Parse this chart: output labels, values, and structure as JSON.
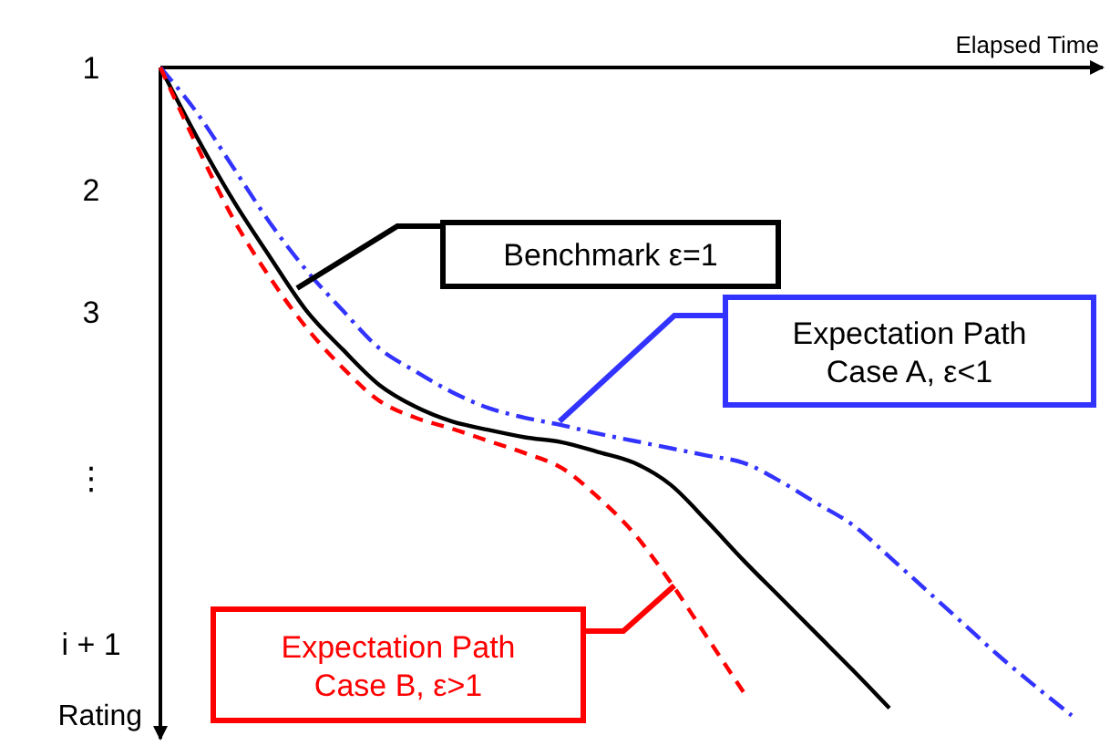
{
  "chart_data": {
    "type": "line",
    "xlabel": "Elapsed Time",
    "ylabel": "Rating",
    "categories": [
      null,
      null,
      null,
      null,
      null,
      null,
      null,
      null,
      null,
      null,
      null,
      null,
      null,
      null,
      null,
      null,
      null,
      null,
      null,
      null,
      null,
      null,
      null,
      null,
      null,
      null
    ],
    "ylim": [
      6.5,
      1
    ],
    "yticks": [
      1,
      2,
      3
    ],
    "annotations": [
      "⋮",
      "i + 1"
    ],
    "grid": false,
    "series": [
      {
        "name": "Benchmark  ε=1",
        "color": "#000000",
        "line_style": "solid",
        "values": [
          1.0,
          1.57,
          2.09,
          2.55,
          2.99,
          3.31,
          3.6,
          3.78,
          3.9,
          3.97,
          4.03,
          4.07,
          4.15,
          4.24,
          4.42,
          4.72,
          5.04,
          5.34,
          5.64,
          5.94,
          6.25,
          null,
          null,
          null,
          null,
          null
        ]
      },
      {
        "name": "Expectation Path\nCase A, ε<1",
        "color": "#3333ff",
        "line_style": "dashdot",
        "values": [
          1.0,
          1.37,
          1.82,
          2.27,
          2.66,
          2.99,
          3.3,
          3.49,
          3.66,
          3.79,
          3.87,
          3.93,
          4.0,
          4.06,
          4.12,
          4.18,
          4.24,
          4.39,
          4.57,
          4.75,
          5.01,
          5.28,
          5.55,
          5.82,
          6.07,
          6.31
        ]
      },
      {
        "name": "Expectation Path\nCase B, ε>1",
        "color": "#ff0000",
        "line_style": "dashed",
        "values": [
          1.0,
          1.64,
          2.24,
          2.72,
          3.13,
          3.46,
          3.73,
          3.87,
          3.96,
          4.06,
          4.16,
          4.28,
          4.52,
          4.82,
          5.22,
          5.67,
          6.12,
          null,
          null,
          null,
          null,
          null,
          null,
          null,
          null,
          null
        ]
      }
    ]
  }
}
